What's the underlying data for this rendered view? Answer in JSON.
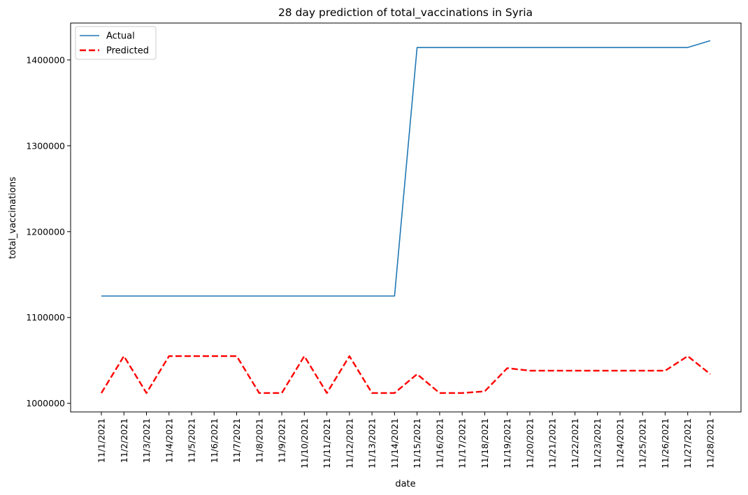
{
  "chart_data": {
    "type": "line",
    "title": "28 day prediction of total_vaccinations in Syria",
    "xlabel": "date",
    "ylabel": "total_vaccinations",
    "categories": [
      "11/1/2021",
      "11/2/2021",
      "11/3/2021",
      "11/4/2021",
      "11/5/2021",
      "11/6/2021",
      "11/7/2021",
      "11/8/2021",
      "11/9/2021",
      "11/10/2021",
      "11/11/2021",
      "11/12/2021",
      "11/13/2021",
      "11/14/2021",
      "11/15/2021",
      "11/16/2021",
      "11/17/2021",
      "11/18/2021",
      "11/19/2021",
      "11/20/2021",
      "11/21/2021",
      "11/22/2021",
      "11/23/2021",
      "11/24/2021",
      "11/25/2021",
      "11/26/2021",
      "11/27/2021",
      "11/28/2021"
    ],
    "series": [
      {
        "name": "Actual",
        "color": "#1f77b4",
        "style": "solid",
        "values": [
          1125000,
          1125000,
          1125000,
          1125000,
          1125000,
          1125000,
          1125000,
          1125000,
          1125000,
          1125000,
          1125000,
          1125000,
          1125000,
          1125000,
          1414500,
          1414500,
          1414500,
          1414500,
          1414500,
          1414500,
          1414500,
          1414500,
          1414500,
          1414500,
          1414500,
          1414500,
          1414500,
          1422500
        ]
      },
      {
        "name": "Predicted",
        "color": "#ff0000",
        "style": "dashed",
        "values": [
          1012000,
          1055000,
          1012000,
          1055000,
          1055000,
          1055000,
          1055000,
          1012000,
          1012000,
          1055000,
          1012000,
          1055000,
          1012000,
          1012000,
          1034000,
          1012000,
          1012000,
          1014000,
          1041000,
          1038000,
          1038000,
          1038000,
          1038000,
          1038000,
          1038000,
          1038000,
          1055000,
          1034000
        ]
      }
    ],
    "yticks": [
      1000000,
      1100000,
      1200000,
      1300000,
      1400000
    ],
    "ylim": [
      990000,
      1443000
    ],
    "grid": false,
    "legend": "upper-left"
  }
}
